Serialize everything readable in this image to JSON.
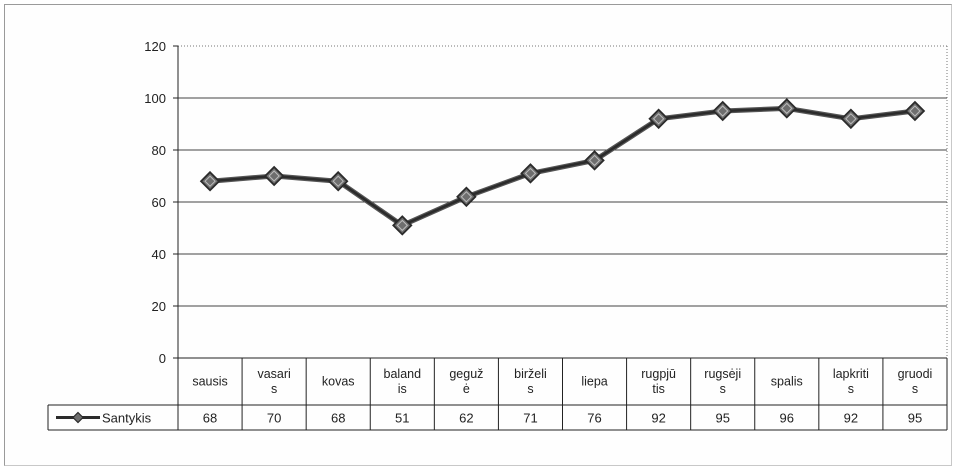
{
  "chart_data": {
    "type": "line",
    "title": "",
    "xlabel": "",
    "ylabel": "",
    "ylim": [
      0,
      120
    ],
    "yticks": [
      0,
      20,
      40,
      60,
      80,
      100,
      120
    ],
    "grid": true,
    "legend_placement": "data-table",
    "categories_lines": [
      [
        "sausis"
      ],
      [
        "vasari",
        "s"
      ],
      [
        "kovas"
      ],
      [
        "baland",
        "is"
      ],
      [
        "geguž",
        "ė"
      ],
      [
        "birželi",
        "s"
      ],
      [
        "liepa"
      ],
      [
        "rugpjū",
        "tis"
      ],
      [
        "rugsėji",
        "s"
      ],
      [
        "spalis"
      ],
      [
        "lapkriti",
        "s"
      ],
      [
        "gruodi",
        "s"
      ]
    ],
    "series": [
      {
        "name": "Santykis",
        "values": [
          68,
          70,
          68,
          51,
          62,
          71,
          76,
          92,
          95,
          96,
          92,
          95
        ]
      }
    ]
  },
  "colors": {
    "line": "#2b2b2b",
    "marker": "#6e6e6e",
    "grid": "#444444",
    "frame": "#9a9a9a"
  }
}
